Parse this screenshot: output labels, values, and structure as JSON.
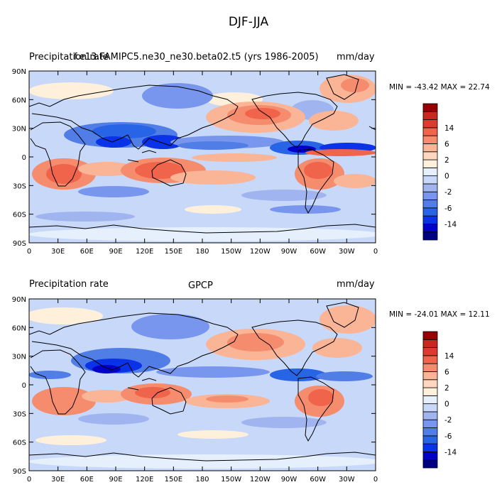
{
  "main_title": "DJF-JJA",
  "colorbar": {
    "colors": [
      "#000080",
      "#0000c8",
      "#0a32e6",
      "#2864e6",
      "#507ee6",
      "#7896ee",
      "#a0b4f0",
      "#c8d8f8",
      "#e6f0fc",
      "#fff0dc",
      "#ffd7be",
      "#fab496",
      "#f58c6e",
      "#f0644b",
      "#dc3c2d",
      "#c8281e",
      "#960000"
    ],
    "labels": [
      "-14",
      "-6",
      "-2",
      "0",
      "2",
      "6",
      "14"
    ]
  },
  "chart_data": [
    {
      "type": "heatmap",
      "title": "Precipitation rate",
      "center_title": "f.e13.FAMIPC5.ne30_ne30.beta02.t5 (yrs 1986-2005)",
      "units": "mm/day",
      "min_max": "MIN = -43.42 MAX =  22.74",
      "x_ticks": [
        "0",
        "30E",
        "60E",
        "90E",
        "120E",
        "150E",
        "180",
        "150W",
        "120W",
        "90W",
        "60W",
        "30W",
        "0"
      ],
      "y_ticks": [
        "90N",
        "60N",
        "30N",
        "0",
        "30S",
        "60S",
        "90S"
      ],
      "xlim": [
        0,
        360
      ],
      "ylim": [
        -90,
        90
      ]
    },
    {
      "type": "heatmap",
      "title": "Precipitation rate",
      "center_title": "GPCP",
      "units": "mm/day",
      "min_max": "MIN = -24.01 MAX =  12.11",
      "x_ticks": [
        "0",
        "30E",
        "60E",
        "90E",
        "120E",
        "150E",
        "180",
        "150W",
        "120W",
        "90W",
        "60W",
        "30W",
        "0"
      ],
      "y_ticks": [
        "90N",
        "60N",
        "30N",
        "0",
        "30S",
        "60S",
        "90S"
      ],
      "xlim": [
        0,
        360
      ],
      "ylim": [
        -90,
        90
      ]
    }
  ]
}
